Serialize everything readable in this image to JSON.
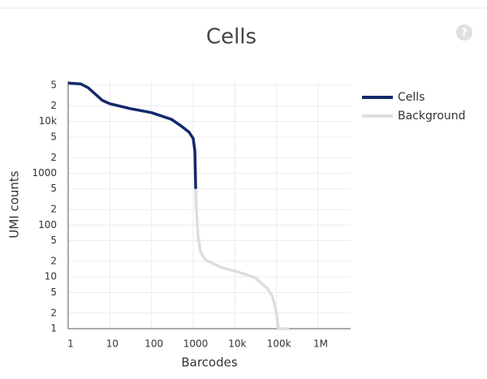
{
  "chart_data": {
    "type": "line",
    "title": "Cells",
    "x_label": "Barcodes",
    "y_label": "UMI counts",
    "xscale": "log",
    "yscale": "log",
    "grid": true,
    "legend": "right",
    "xlim": [
      1,
      6000000
    ],
    "ylim": [
      1,
      60000
    ],
    "xticks": [
      1,
      10,
      100,
      1000,
      {
        "value": 10000,
        "label": "10k"
      },
      {
        "value": 100000,
        "label": "100k"
      },
      {
        "value": 1000000,
        "label": "1M"
      }
    ],
    "yticks": [
      1,
      2,
      5,
      10,
      {
        "value": 20,
        "label": "2"
      },
      {
        "value": 50,
        "label": "5"
      },
      100,
      {
        "value": 200,
        "label": "2"
      },
      {
        "value": 500,
        "label": "5"
      },
      1000,
      {
        "value": 2000,
        "label": "2"
      },
      {
        "value": 5000,
        "label": "5"
      },
      {
        "value": 10000,
        "label": "10k"
      },
      {
        "value": 20000,
        "label": "2"
      },
      {
        "value": 50000,
        "label": "5"
      }
    ],
    "series": [
      {
        "name": "Cells",
        "color": "#13296b",
        "x": [
          1,
          2,
          3,
          6.6,
          10,
          30,
          100,
          300,
          500,
          800,
          1000,
          1100,
          1150
        ],
        "values": [
          55000,
          53000,
          45000,
          25500,
          22000,
          17800,
          14800,
          11000,
          8300,
          6200,
          4700,
          2700,
          500
        ]
      },
      {
        "name": "Background",
        "color": "#dddddd",
        "x": [
          1150,
          1200,
          1300,
          1500,
          2000,
          5000,
          10000,
          30000,
          60000,
          80000,
          100000,
          110000,
          200000
        ],
        "values": [
          500,
          185,
          63,
          30,
          21,
          15,
          13,
          9.7,
          6,
          4.2,
          2,
          1,
          1
        ]
      }
    ]
  }
}
